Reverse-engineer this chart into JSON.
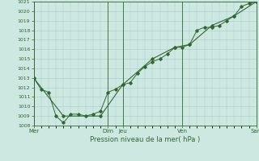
{
  "title": "Pression niveau de la mer( hPa )",
  "bg_color": "#cce8e0",
  "plot_bg_color": "#cce8e0",
  "grid_color": "#aacccc",
  "line_color": "#336633",
  "marker_color": "#336633",
  "ylim": [
    1008,
    1021
  ],
  "yticks": [
    1008,
    1009,
    1010,
    1011,
    1012,
    1013,
    1014,
    1015,
    1016,
    1017,
    1018,
    1019,
    1020,
    1021
  ],
  "xtick_labels": [
    "Mer",
    "Dim",
    "Jeu",
    "Ven",
    "Sam"
  ],
  "xtick_positions": [
    0,
    5,
    6,
    10,
    15
  ],
  "vlines": [
    0,
    5,
    6,
    10,
    15
  ],
  "series1": {
    "x": [
      0,
      0.5,
      1.0,
      1.5,
      2.0,
      2.5,
      3.0,
      3.5,
      4.0,
      4.5,
      5.0,
      5.5,
      6.0,
      6.5,
      7.0,
      7.5,
      8.0,
      8.5,
      9.0,
      9.5,
      10.0,
      10.5,
      11.0,
      11.5,
      12.0,
      12.5,
      13.0,
      13.5,
      14.0,
      14.5,
      15.0
    ],
    "y": [
      1013.0,
      1011.8,
      1011.5,
      1009.0,
      1008.3,
      1009.2,
      1009.2,
      1009.0,
      1009.2,
      1009.5,
      1011.5,
      1011.8,
      1012.3,
      1012.5,
      1013.5,
      1014.2,
      1014.7,
      1015.0,
      1015.5,
      1016.2,
      1016.2,
      1016.5,
      1018.0,
      1018.3,
      1018.3,
      1018.5,
      1019.0,
      1019.5,
      1020.5,
      1020.8,
      1021.0
    ]
  },
  "series2": {
    "x": [
      0,
      2.0,
      4.5,
      6.0,
      8.0,
      9.5,
      10.5,
      12.0,
      13.5,
      15.0
    ],
    "y": [
      1013.0,
      1009.0,
      1009.0,
      1012.3,
      1015.0,
      1016.2,
      1016.5,
      1018.5,
      1019.5,
      1021.0
    ]
  }
}
